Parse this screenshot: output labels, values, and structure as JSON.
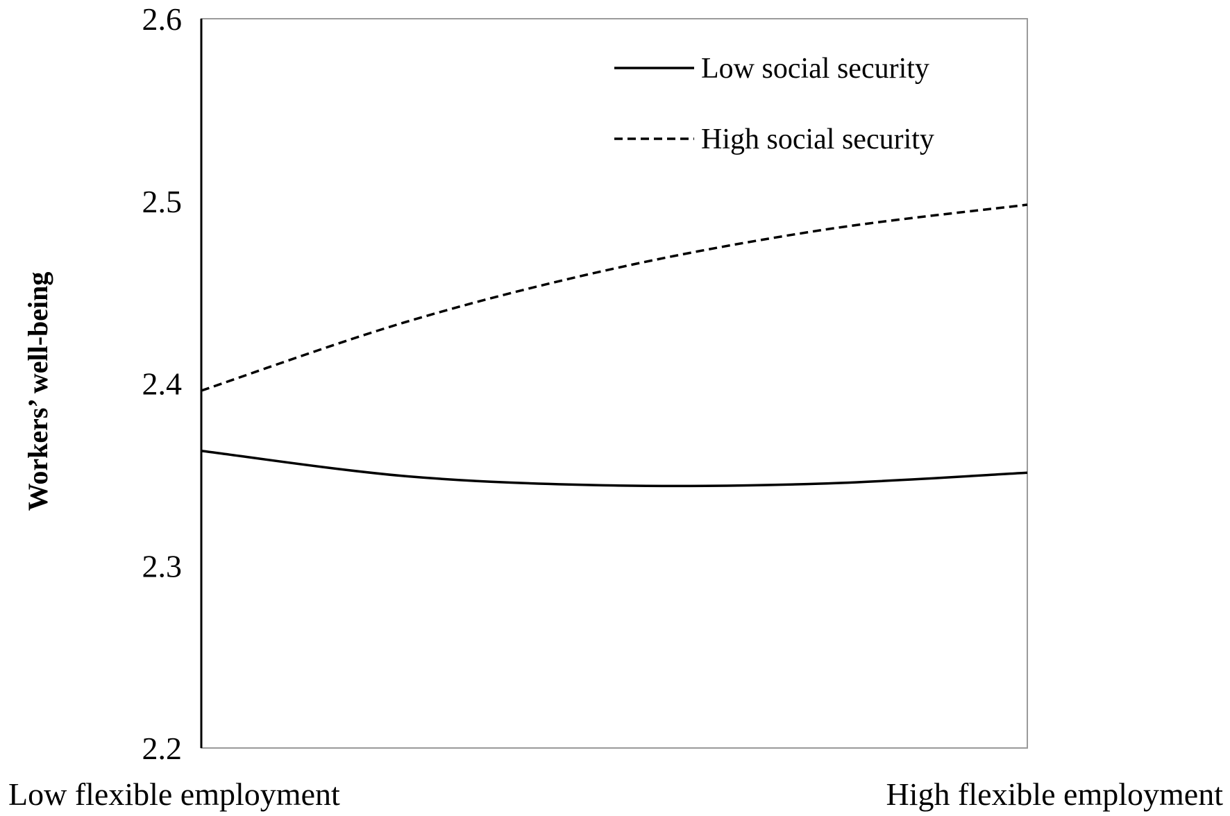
{
  "chart_data": {
    "type": "line",
    "categories": [
      "Low flexible employment",
      "High flexible employment"
    ],
    "ylabel": "Workers’ well-being",
    "ylim": [
      2.2,
      2.6
    ],
    "y_ticks": [
      "2.2",
      "2.3",
      "2.4",
      "2.5",
      "2.6"
    ],
    "grid": false,
    "legend_position": "top-right",
    "series": [
      {
        "name": "Low social security",
        "line_style": "solid",
        "color": "#000000",
        "x": [
          0,
          0.25,
          0.5,
          0.75,
          1
        ],
        "values": [
          2.363,
          2.349,
          2.344,
          2.345,
          2.351
        ]
      },
      {
        "name": "High social security",
        "line_style": "dashed",
        "color": "#000000",
        "x": [
          0,
          0.25,
          0.5,
          0.75,
          1
        ],
        "values": [
          2.396,
          2.434,
          2.463,
          2.484,
          2.498
        ]
      }
    ]
  }
}
